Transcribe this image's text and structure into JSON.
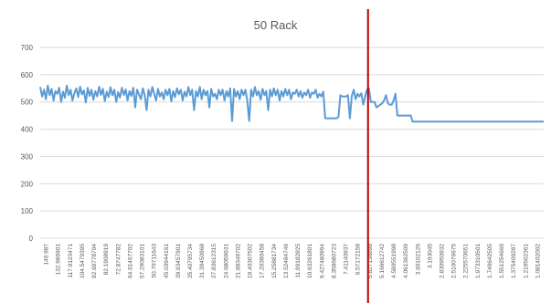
{
  "chart_data": {
    "type": "line",
    "title": "50 Rack",
    "xlabel": "",
    "ylabel": "",
    "ylim": [
      0,
      700
    ],
    "yticks": [
      0,
      100,
      200,
      300,
      400,
      500,
      600,
      700
    ],
    "grid": true,
    "legend": "none",
    "colors": {
      "series": "#5b9bd5",
      "marker_line": "#c00000",
      "grid": "#d9d9d9"
    },
    "x_tick_labels": [
      "149.987",
      "132.986901",
      "117.9123471",
      "104.5479395",
      "92.69778704",
      "82.1908919",
      "72.8747782",
      "64.61467702",
      "57.29083101",
      "50.79711643",
      "45.03944161",
      "39.93457901",
      "35.40795734",
      "31.39450968",
      "27.83612315",
      "24.68059631",
      "21.88349702",
      "19.40307502",
      "17.20380458",
      "15.25881734",
      "13.52484749",
      "11.99182825",
      "10.63261801",
      "9.427480994",
      "8.358680723",
      "7.41140937",
      "6.57172158",
      "5.827138898",
      "5.166612742",
      "4.580551998",
      "4.061362509",
      "3.60102126",
      "3.193045",
      "2.830950932",
      "2.510079675",
      "2.225570651",
      "1.973310501",
      "1.749642505",
      "1.551254669",
      "1.375409287",
      "1.219502361",
      "1.081402002"
    ],
    "marker_x_label": "5.827138898",
    "series": [
      {
        "values": [
          555,
          520,
          545,
          510,
          560,
          525,
          548,
          505,
          540,
          530,
          552,
          500,
          538,
          515,
          560,
          525,
          545,
          505,
          532,
          550,
          518,
          556,
          528,
          542,
          498,
          552,
          522,
          545,
          508,
          540,
          520,
          556,
          526,
          548,
          503,
          538,
          518,
          554,
          524,
          545,
          500,
          536,
          516,
          552,
          526,
          546,
          505,
          540,
          522,
          552,
          480,
          545,
          528,
          510,
          550,
          525,
          470,
          545,
          520,
          555,
          530,
          505,
          548,
          520,
          535,
          510,
          545,
          525,
          548,
          502,
          540,
          518,
          550,
          528,
          545,
          505,
          538,
          520,
          555,
          525,
          545,
          470,
          540,
          520,
          555,
          510,
          545,
          525,
          540,
          480,
          548,
          520,
          530,
          510,
          545,
          525,
          545,
          505,
          540,
          520,
          550,
          430,
          548,
          520,
          540,
          510,
          545,
          525,
          545,
          505,
          430,
          545,
          520,
          555,
          525,
          540,
          508,
          548,
          525,
          540,
          470,
          545,
          520,
          550,
          525,
          545,
          505,
          540,
          520,
          548,
          525,
          545,
          510,
          535,
          530,
          545,
          520,
          540,
          515,
          535,
          525,
          545,
          515,
          535,
          530,
          545,
          515,
          530,
          520,
          538,
          440,
          440,
          440,
          440,
          440,
          440,
          440,
          445,
          525,
          520,
          520,
          520,
          525,
          440,
          522,
          545,
          510,
          530,
          520,
          532,
          490,
          520,
          545,
          550,
          500,
          500,
          500,
          480,
          485,
          490,
          495,
          505,
          525,
          495,
          490,
          490,
          505,
          530,
          450,
          450,
          450,
          450,
          450,
          450,
          450,
          450,
          428,
          428,
          428,
          428,
          428,
          428,
          428,
          428,
          428,
          428,
          428,
          428,
          428,
          428,
          428,
          428,
          428,
          428,
          428,
          428,
          428,
          428,
          428,
          428,
          428,
          428,
          428,
          428,
          428,
          428,
          428,
          428,
          428,
          428,
          428,
          428,
          428,
          428,
          428,
          428,
          428,
          428,
          428,
          428,
          428,
          428,
          428,
          428,
          428,
          428,
          428,
          428,
          428,
          428,
          428,
          428,
          428,
          428,
          428,
          428,
          428,
          428,
          428,
          428,
          428,
          428,
          428,
          428,
          428,
          428
        ]
      }
    ]
  }
}
